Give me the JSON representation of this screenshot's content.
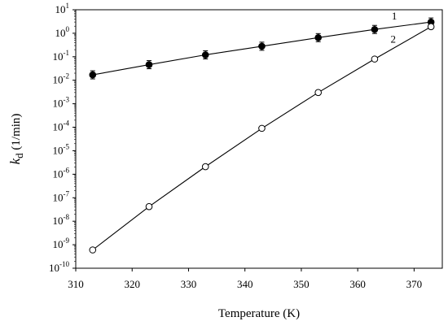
{
  "chart_data": {
    "type": "scatter",
    "xlabel": "Temperature (K)",
    "ylabel": "k",
    "ylabel_subscript": "d",
    "ylabel_unit": " (1/min)",
    "xlim": [
      310,
      375
    ],
    "ylim_exp": [
      -10,
      1
    ],
    "yscale": "log",
    "x_ticks": [
      310,
      320,
      330,
      340,
      350,
      360,
      370
    ],
    "x_tick_labels": [
      "310",
      "320",
      "330",
      "340",
      "350",
      "360",
      "370"
    ],
    "y_tick_exponents": [
      -10,
      -9,
      -8,
      -7,
      -6,
      -5,
      -4,
      -3,
      -2,
      -1,
      0,
      1
    ],
    "y_tick_labels": [
      "10",
      "10",
      "10",
      "10",
      "10",
      "10",
      "10",
      "10",
      "10",
      "10",
      "10",
      "10"
    ],
    "y_tick_sups": [
      "-10",
      "-9",
      "-8",
      "-7",
      "-6",
      "-5",
      "-4",
      "-3",
      "-2",
      "-1",
      "0",
      "1"
    ],
    "grid": false,
    "series": [
      {
        "name": "1",
        "marker": "filled-circle",
        "error_bars": true,
        "x": [
          313,
          323,
          333,
          343,
          353,
          363,
          373
        ],
        "y": [
          0.017,
          0.046,
          0.12,
          0.28,
          0.65,
          1.45,
          3.0
        ]
      },
      {
        "name": "2",
        "marker": "open-circle",
        "error_bars": false,
        "x": [
          313,
          323,
          333,
          343,
          353,
          363,
          373
        ],
        "y": [
          6e-10,
          4.2e-08,
          2.1e-06,
          9e-05,
          0.003,
          0.08,
          1.9
        ]
      }
    ],
    "colors": {
      "line": "#000000",
      "open_fill": "#ffffff",
      "filled": "#000000"
    }
  }
}
